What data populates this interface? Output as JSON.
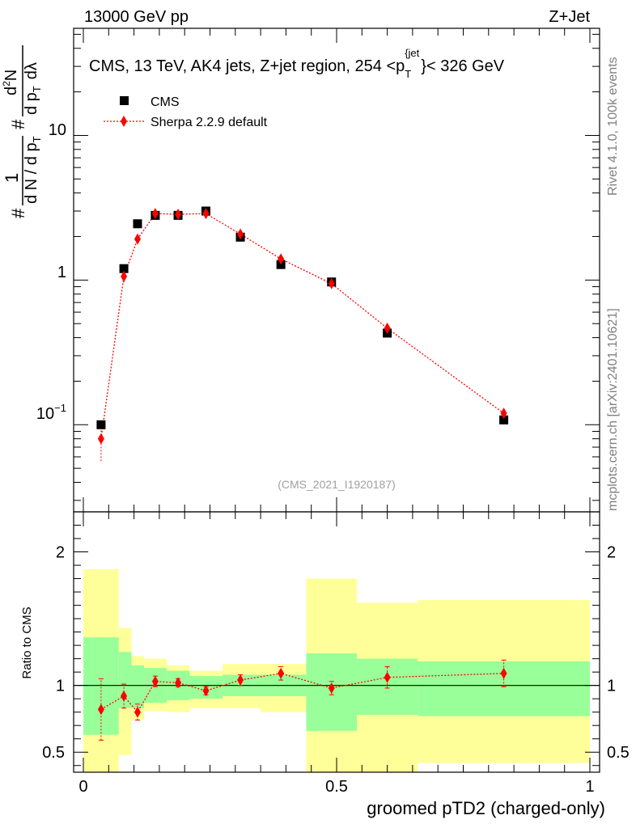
{
  "header": {
    "left": "13000 GeV pp",
    "right": "Z+Jet"
  },
  "side_labels": {
    "rivet": "Rivet 4.1.0,  100k events",
    "mcplots": "mcplots.cern.ch [arXiv:2401.10621]"
  },
  "colors": {
    "mc": "#ff0000",
    "band_inner": "#99ff99",
    "band_outer": "#ffff99",
    "data": "#000000",
    "watermark": "#a0a0a0"
  },
  "chart_data": [
    {
      "id": "main",
      "type": "scatter",
      "title": "CMS, 13 TeV, AK4 jets, Z+jet region, 254 <p_T^{jet}< 326 GeV",
      "title_parts": {
        "prefix": "CMS, 13 TeV, AK4 jets, Z+jet region, 254 <p",
        "sub": "T",
        "sup": "{jet",
        "suffix": "}< 326 GeV"
      },
      "ylabel_parts": {
        "hash1": "#",
        "one": "1",
        "denominator": "d N / d p",
        "den_sub": "T",
        "hash2": "#",
        "numerator": "d",
        "num_sup": "2",
        "num_end": "N",
        "dp": "d p",
        "dp_sub": "T",
        "dlambda": "dλ"
      },
      "yscale": "log",
      "xlim": [
        0,
        1
      ],
      "ylim": [
        0.025,
        55
      ],
      "ytick_labels": [
        {
          "value": 0.1,
          "base": "10",
          "exp": "−1"
        },
        {
          "value": 1,
          "base": "1",
          "exp": ""
        },
        {
          "value": 10,
          "base": "10",
          "exp": ""
        }
      ],
      "watermark": "(CMS_2021_I1920187)",
      "legend": [
        "CMS",
        "Sherpa 2.2.9 default"
      ],
      "legend_position": "top-left",
      "series": [
        {
          "name": "CMS",
          "marker": "square",
          "x": [
            0.035,
            0.08,
            0.107,
            0.142,
            0.187,
            0.242,
            0.31,
            0.39,
            0.49,
            0.6,
            0.83
          ],
          "y": [
            0.1,
            1.2,
            2.45,
            2.8,
            2.8,
            3.0,
            1.98,
            1.28,
            0.97,
            0.43,
            0.108
          ]
        },
        {
          "name": "Sherpa 2.2.9 default",
          "marker": "diamond",
          "x": [
            0.035,
            0.08,
            0.107,
            0.142,
            0.187,
            0.242,
            0.31,
            0.39,
            0.49,
            0.6,
            0.83
          ],
          "y": [
            0.08,
            1.06,
            1.92,
            2.88,
            2.85,
            2.88,
            2.08,
            1.4,
            0.945,
            0.465,
            0.12
          ],
          "yerr_low": [
            0.024,
            0.1,
            0.14,
            0.12,
            0.1,
            0.1,
            0.1,
            0.08,
            0.05,
            0.035,
            0.012
          ],
          "yerr_high": [
            0.024,
            0.1,
            0.14,
            0.12,
            0.1,
            0.1,
            0.1,
            0.08,
            0.05,
            0.035,
            0.012
          ]
        }
      ]
    },
    {
      "id": "ratio",
      "type": "scatter",
      "ylabel": "Ratio to CMS",
      "xlabel": "groomed pTD2 (charged-only)",
      "xlim": [
        0,
        1
      ],
      "ylim": [
        0.35,
        2.3
      ],
      "xticks": [
        0,
        0.5,
        1
      ],
      "xtick_labels": [
        "0",
        "0.5",
        "1"
      ],
      "yticks": [
        0.5,
        1,
        2
      ],
      "ytick_labels": [
        "0.5",
        "1",
        "2"
      ],
      "reference_line": 1,
      "bins": [
        {
          "lo": 0.0,
          "hi": 0.07,
          "in": [
            0.63,
            1.36
          ],
          "out": [
            0.35,
            1.87
          ]
        },
        {
          "lo": 0.07,
          "hi": 0.095,
          "in": [
            0.83,
            1.25
          ],
          "out": [
            0.48,
            1.43
          ]
        },
        {
          "lo": 0.095,
          "hi": 0.12,
          "in": [
            0.83,
            1.15
          ],
          "out": [
            0.74,
            1.22
          ]
        },
        {
          "lo": 0.12,
          "hi": 0.165,
          "in": [
            0.87,
            1.13
          ],
          "out": [
            0.81,
            1.2
          ]
        },
        {
          "lo": 0.165,
          "hi": 0.21,
          "in": [
            0.89,
            1.11
          ],
          "out": [
            0.8,
            1.15
          ]
        },
        {
          "lo": 0.21,
          "hi": 0.275,
          "in": [
            0.9,
            1.07
          ],
          "out": [
            0.83,
            1.11
          ]
        },
        {
          "lo": 0.275,
          "hi": 0.35,
          "in": [
            0.92,
            1.08
          ],
          "out": [
            0.83,
            1.16
          ]
        },
        {
          "lo": 0.35,
          "hi": 0.44,
          "in": [
            0.92,
            1.08
          ],
          "out": [
            0.8,
            1.16
          ]
        },
        {
          "lo": 0.44,
          "hi": 0.54,
          "in": [
            0.66,
            1.24
          ],
          "out": [
            0.35,
            1.8
          ]
        },
        {
          "lo": 0.54,
          "hi": 0.66,
          "in": [
            0.78,
            1.2
          ],
          "out": [
            0.35,
            1.62
          ]
        },
        {
          "lo": 0.66,
          "hi": 1.0,
          "in": [
            0.77,
            1.18
          ],
          "out": [
            0.42,
            1.64
          ]
        }
      ],
      "series": [
        {
          "name": "Sherpa 2.2.9 default",
          "x": [
            0.035,
            0.08,
            0.107,
            0.142,
            0.187,
            0.242,
            0.31,
            0.39,
            0.49,
            0.6,
            0.83
          ],
          "y": [
            0.82,
            0.92,
            0.8,
            1.03,
            1.02,
            0.96,
            1.04,
            1.09,
            0.98,
            1.06,
            1.09
          ],
          "yerr_low": [
            0.23,
            0.09,
            0.06,
            0.04,
            0.03,
            0.03,
            0.04,
            0.05,
            0.05,
            0.08,
            0.1
          ],
          "yerr_high": [
            0.23,
            0.09,
            0.06,
            0.04,
            0.03,
            0.03,
            0.04,
            0.05,
            0.05,
            0.08,
            0.1
          ]
        }
      ]
    }
  ]
}
